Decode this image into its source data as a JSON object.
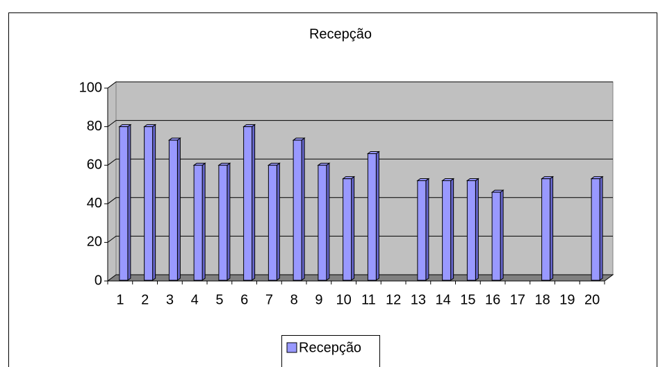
{
  "chart_data": {
    "type": "bar",
    "title": "Recepção",
    "categories": [
      "1",
      "2",
      "3",
      "4",
      "5",
      "6",
      "7",
      "8",
      "9",
      "10",
      "11",
      "12",
      "13",
      "14",
      "15",
      "16",
      "17",
      "18",
      "19",
      "20"
    ],
    "series": [
      {
        "name": "Recepção",
        "color": "#9999ff",
        "values": [
          80,
          80,
          73,
          60,
          60,
          80,
          60,
          73,
          60,
          53,
          66,
          null,
          52,
          52,
          52,
          46,
          null,
          53,
          null,
          53
        ]
      }
    ],
    "ylim": [
      0,
      100
    ],
    "yticks": [
      0,
      20,
      40,
      60,
      80,
      100
    ],
    "grid": true,
    "legend": "bottom"
  }
}
